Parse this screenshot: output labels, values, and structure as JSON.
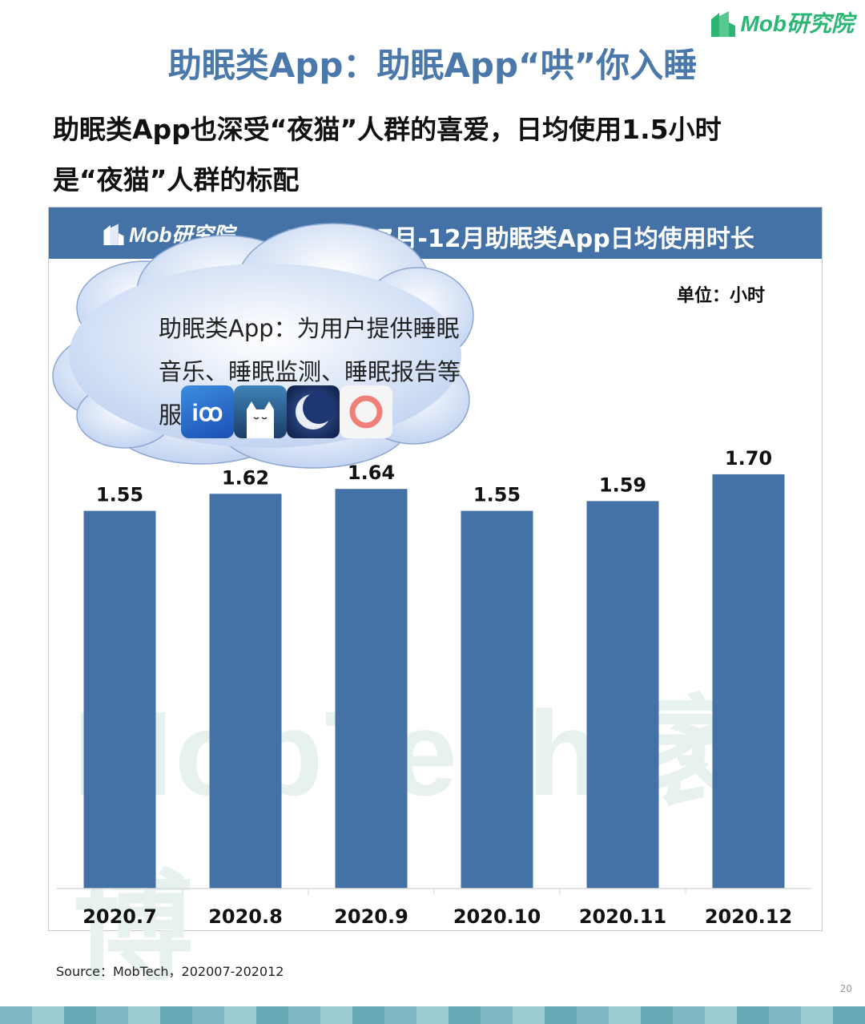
{
  "logo": {
    "text": "Mob研究院"
  },
  "slide_title": "助眠类App：助眠App“哄”你入睡",
  "subtitle_lines": [
    "助眠类App也深受“夜猫”人群的喜爱，日均使用1.5小时",
    "是“夜猫”人群的标配"
  ],
  "chart_header": {
    "logo_text": "Mob研究院",
    "title": "2020年7月-12月助眠类App日均使用时长"
  },
  "unit_label": "单位：小时",
  "callout": {
    "lines": [
      "助眠类App：为用户提供睡眠",
      "音乐、睡眠监测、睡眠报告等",
      "服务"
    ],
    "icons": [
      "sleep-sound-app-icon",
      "white-cat-app-icon",
      "moon-night-app-icon",
      "coral-ring-app-icon"
    ]
  },
  "watermark": "MobTech 袤博",
  "chart_data": {
    "type": "bar",
    "categories": [
      "2020.7",
      "2020.8",
      "2020.9",
      "2020.10",
      "2020.11",
      "2020.12"
    ],
    "values": [
      1.55,
      1.62,
      1.64,
      1.55,
      1.59,
      1.7
    ],
    "value_labels": [
      "1.55",
      "1.62",
      "1.64",
      "1.55",
      "1.59",
      "1.70"
    ],
    "ylim": [
      0,
      1.8
    ],
    "bar_color": "#4472a6",
    "grid": false,
    "legend": "none"
  },
  "source": "Source：MobTech，202007-202012",
  "page_number": "20"
}
